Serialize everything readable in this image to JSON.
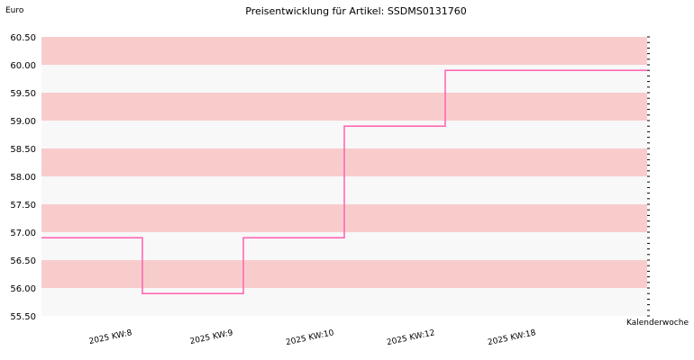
{
  "chart_data": {
    "type": "line",
    "title": "Preisentwicklung für Artikel: SSDMS0131760",
    "xlabel": "Kalenderwoche",
    "ylabel": "Euro",
    "categories": [
      "2025 KW:8",
      "2025 KW:9",
      "2025 KW:10",
      "2025 KW:12",
      "2025 KW:18"
    ],
    "step": true,
    "series": [
      {
        "values": [
          56.9,
          55.9,
          56.9,
          58.9,
          59.9
        ],
        "color": "#ff69b4"
      }
    ],
    "ylim": [
      55.5,
      60.5
    ],
    "yticks": [
      "55.50",
      "56.00",
      "56.50",
      "57.00",
      "57.50",
      "58.00",
      "58.50",
      "59.00",
      "59.50",
      "60.00",
      "60.50"
    ],
    "band_colors": [
      "#f8f8f8",
      "#f9cccc"
    ],
    "grid": true,
    "legend": "none"
  }
}
